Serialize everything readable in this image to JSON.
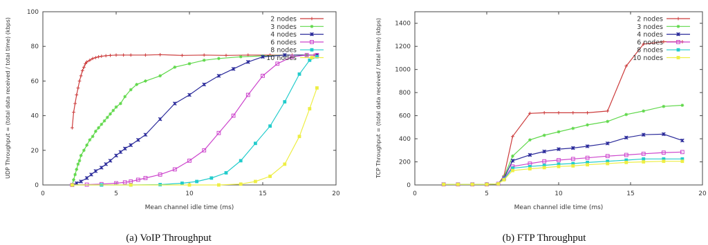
{
  "colors": {
    "2 nodes": "#cc3b3b",
    "3 nodes": "#5fd84a",
    "4 nodes": "#2a2a9a",
    "6 nodes": "#cc44cc",
    "8 nodes": "#22cccc",
    "10 nodes": "#eeee44"
  },
  "chart_data": [
    {
      "type": "line",
      "caption": "(a) VoIP Throughput",
      "xlabel": "Mean channel idle time (ms)",
      "ylabel": "UDP Throughput = (total data received / total time) (kbps)",
      "xlim": [
        0,
        20
      ],
      "ylim": [
        0,
        100
      ],
      "xticks": [
        0,
        5,
        10,
        15,
        20
      ],
      "yticks": [
        0,
        20,
        40,
        60,
        80,
        100
      ],
      "grid": false,
      "legend_position": "top-right",
      "series": [
        {
          "name": "2 nodes",
          "marker": "plus",
          "points": [
            [
              2.0,
              33
            ],
            [
              2.1,
              42
            ],
            [
              2.2,
              47
            ],
            [
              2.3,
              52
            ],
            [
              2.4,
              56
            ],
            [
              2.5,
              60
            ],
            [
              2.6,
              63
            ],
            [
              2.7,
              66
            ],
            [
              2.8,
              68
            ],
            [
              2.9,
              70
            ],
            [
              3.0,
              71
            ],
            [
              3.2,
              72
            ],
            [
              3.4,
              73
            ],
            [
              3.6,
              73.5
            ],
            [
              3.8,
              74
            ],
            [
              4.0,
              74.3
            ],
            [
              4.3,
              74.6
            ],
            [
              4.6,
              74.8
            ],
            [
              5.0,
              75
            ],
            [
              5.5,
              75
            ],
            [
              6.0,
              75
            ],
            [
              7.0,
              75
            ],
            [
              8.0,
              75.2
            ],
            [
              9.5,
              74.8
            ],
            [
              11,
              75
            ],
            [
              12.5,
              74.8
            ],
            [
              14,
              75
            ],
            [
              15.5,
              75
            ],
            [
              17,
              75
            ],
            [
              18.5,
              75
            ]
          ]
        },
        {
          "name": "3 nodes",
          "marker": "star",
          "points": [
            [
              2.0,
              0
            ],
            [
              2.1,
              3
            ],
            [
              2.2,
              6
            ],
            [
              2.3,
              9
            ],
            [
              2.4,
              12
            ],
            [
              2.5,
              14
            ],
            [
              2.6,
              17
            ],
            [
              2.8,
              20
            ],
            [
              3.0,
              23
            ],
            [
              3.2,
              26
            ],
            [
              3.4,
              28
            ],
            [
              3.6,
              31
            ],
            [
              3.8,
              33
            ],
            [
              4.0,
              35
            ],
            [
              4.2,
              37
            ],
            [
              4.4,
              39
            ],
            [
              4.6,
              41
            ],
            [
              4.8,
              43
            ],
            [
              5.0,
              45
            ],
            [
              5.3,
              47
            ],
            [
              5.6,
              51
            ],
            [
              6.0,
              55
            ],
            [
              6.4,
              58
            ],
            [
              7.0,
              60
            ],
            [
              8.0,
              63
            ],
            [
              9.0,
              68
            ],
            [
              10,
              70
            ],
            [
              11,
              72
            ],
            [
              12,
              73
            ],
            [
              13.5,
              74
            ],
            [
              15,
              74.5
            ],
            [
              16.5,
              75
            ],
            [
              18,
              75
            ],
            [
              18.7,
              75
            ]
          ]
        },
        {
          "name": "4 nodes",
          "marker": "asterisk",
          "points": [
            [
              2.0,
              0
            ],
            [
              2.3,
              1
            ],
            [
              2.6,
              2
            ],
            [
              3.0,
              4
            ],
            [
              3.3,
              6
            ],
            [
              3.6,
              8
            ],
            [
              4.0,
              10
            ],
            [
              4.3,
              12
            ],
            [
              4.6,
              14
            ],
            [
              5.0,
              17
            ],
            [
              5.3,
              19
            ],
            [
              5.6,
              21
            ],
            [
              6.0,
              23
            ],
            [
              6.5,
              26
            ],
            [
              7.0,
              29
            ],
            [
              8.0,
              38
            ],
            [
              9.0,
              47
            ],
            [
              10.0,
              52
            ],
            [
              11.0,
              58
            ],
            [
              12.0,
              63
            ],
            [
              13.0,
              67
            ],
            [
              14.0,
              71
            ],
            [
              15.0,
              74
            ],
            [
              16.5,
              75
            ],
            [
              18.7,
              75
            ]
          ]
        },
        {
          "name": "6 nodes",
          "marker": "square-open",
          "points": [
            [
              2.0,
              0
            ],
            [
              3.0,
              0.2
            ],
            [
              4.0,
              0.5
            ],
            [
              5.0,
              1
            ],
            [
              5.6,
              1.5
            ],
            [
              6.0,
              2
            ],
            [
              6.5,
              3
            ],
            [
              7.0,
              4
            ],
            [
              8.0,
              6
            ],
            [
              9.0,
              9
            ],
            [
              10.0,
              14
            ],
            [
              11.0,
              20
            ],
            [
              12.0,
              30
            ],
            [
              13.0,
              40
            ],
            [
              14.0,
              52
            ],
            [
              15.0,
              63
            ],
            [
              16.0,
              70
            ],
            [
              17.0,
              74
            ],
            [
              18.0,
              75
            ],
            [
              18.7,
              75
            ]
          ]
        },
        {
          "name": "8 nodes",
          "marker": "square-filled",
          "points": [
            [
              2.0,
              0
            ],
            [
              4.0,
              0
            ],
            [
              6.0,
              0
            ],
            [
              8.0,
              0.2
            ],
            [
              9.5,
              1
            ],
            [
              10.5,
              2
            ],
            [
              11.5,
              4
            ],
            [
              12.5,
              7
            ],
            [
              13.5,
              14
            ],
            [
              14.5,
              24
            ],
            [
              15.5,
              34
            ],
            [
              16.5,
              48
            ],
            [
              17.5,
              64
            ],
            [
              18.2,
              72
            ],
            [
              18.7,
              74
            ]
          ]
        },
        {
          "name": "10 nodes",
          "marker": "square-filled",
          "points": [
            [
              2.0,
              0
            ],
            [
              6.0,
              0
            ],
            [
              10.0,
              0
            ],
            [
              12.0,
              0
            ],
            [
              13.5,
              0.5
            ],
            [
              14.5,
              2
            ],
            [
              15.5,
              5
            ],
            [
              16.5,
              12
            ],
            [
              17.5,
              28
            ],
            [
              18.2,
              44
            ],
            [
              18.7,
              56
            ]
          ]
        }
      ]
    },
    {
      "type": "line",
      "caption": "(b) FTP Throughput",
      "xlabel": "Mean channel idle time (ms)",
      "ylabel": "TCP Throughput = (total data received / total time) (kbps)",
      "xlim": [
        0,
        20
      ],
      "ylim": [
        0,
        1500
      ],
      "xticks": [
        0,
        5,
        10,
        15,
        20
      ],
      "yticks": [
        0,
        200,
        400,
        600,
        800,
        1000,
        1200,
        1400
      ],
      "grid": false,
      "legend_position": "top-right",
      "series": [
        {
          "name": "2 nodes",
          "marker": "plus",
          "points": [
            [
              2.0,
              5
            ],
            [
              3.0,
              5
            ],
            [
              4.0,
              5
            ],
            [
              5.0,
              5
            ],
            [
              5.8,
              10
            ],
            [
              6.2,
              80
            ],
            [
              6.8,
              420
            ],
            [
              8.0,
              620
            ],
            [
              9.0,
              625
            ],
            [
              10,
              625
            ],
            [
              11,
              625
            ],
            [
              12,
              625
            ],
            [
              13.4,
              640
            ],
            [
              14.7,
              1030
            ],
            [
              15.9,
              1220
            ],
            [
              17.3,
              1240
            ],
            [
              18.6,
              1240
            ]
          ]
        },
        {
          "name": "3 nodes",
          "marker": "star",
          "points": [
            [
              2.0,
              5
            ],
            [
              3.0,
              5
            ],
            [
              4.0,
              5
            ],
            [
              5.0,
              5
            ],
            [
              5.8,
              10
            ],
            [
              6.2,
              70
            ],
            [
              6.8,
              250
            ],
            [
              8.0,
              390
            ],
            [
              9.0,
              430
            ],
            [
              10,
              460
            ],
            [
              11,
              490
            ],
            [
              12,
              520
            ],
            [
              13.4,
              550
            ],
            [
              14.7,
              610
            ],
            [
              15.9,
              640
            ],
            [
              17.3,
              680
            ],
            [
              18.6,
              690
            ]
          ]
        },
        {
          "name": "4 nodes",
          "marker": "asterisk",
          "points": [
            [
              2.0,
              5
            ],
            [
              3.0,
              5
            ],
            [
              4.0,
              5
            ],
            [
              5.0,
              5
            ],
            [
              5.8,
              10
            ],
            [
              6.2,
              60
            ],
            [
              6.8,
              210
            ],
            [
              8.0,
              260
            ],
            [
              9.0,
              290
            ],
            [
              10,
              310
            ],
            [
              11,
              320
            ],
            [
              12,
              335
            ],
            [
              13.4,
              360
            ],
            [
              14.7,
              410
            ],
            [
              15.9,
              435
            ],
            [
              17.3,
              440
            ],
            [
              18.6,
              385
            ]
          ]
        },
        {
          "name": "6 nodes",
          "marker": "square-open",
          "points": [
            [
              2.0,
              5
            ],
            [
              3.0,
              5
            ],
            [
              4.0,
              5
            ],
            [
              5.0,
              5
            ],
            [
              5.8,
              10
            ],
            [
              6.2,
              55
            ],
            [
              6.8,
              160
            ],
            [
              8.0,
              185
            ],
            [
              9.0,
              205
            ],
            [
              10,
              215
            ],
            [
              11,
              225
            ],
            [
              12,
              235
            ],
            [
              13.4,
              250
            ],
            [
              14.7,
              260
            ],
            [
              15.9,
              270
            ],
            [
              17.3,
              280
            ],
            [
              18.6,
              285
            ]
          ]
        },
        {
          "name": "8 nodes",
          "marker": "square-filled",
          "points": [
            [
              2.0,
              5
            ],
            [
              3.0,
              5
            ],
            [
              4.0,
              5
            ],
            [
              5.0,
              5
            ],
            [
              5.8,
              10
            ],
            [
              6.2,
              50
            ],
            [
              6.8,
              145
            ],
            [
              8.0,
              160
            ],
            [
              9.0,
              170
            ],
            [
              10,
              180
            ],
            [
              11,
              185
            ],
            [
              12,
              195
            ],
            [
              13.4,
              205
            ],
            [
              14.7,
              215
            ],
            [
              15.9,
              225
            ],
            [
              17.3,
              225
            ],
            [
              18.6,
              225
            ]
          ]
        },
        {
          "name": "10 nodes",
          "marker": "square-filled",
          "points": [
            [
              2.0,
              5
            ],
            [
              3.0,
              5
            ],
            [
              4.0,
              5
            ],
            [
              5.0,
              5
            ],
            [
              5.8,
              10
            ],
            [
              6.2,
              45
            ],
            [
              6.8,
              125
            ],
            [
              8.0,
              140
            ],
            [
              9.0,
              150
            ],
            [
              10,
              160
            ],
            [
              11,
              165
            ],
            [
              12,
              175
            ],
            [
              13.4,
              185
            ],
            [
              14.7,
              195
            ],
            [
              15.9,
              200
            ],
            [
              17.3,
              205
            ],
            [
              18.6,
              205
            ]
          ]
        }
      ]
    }
  ]
}
